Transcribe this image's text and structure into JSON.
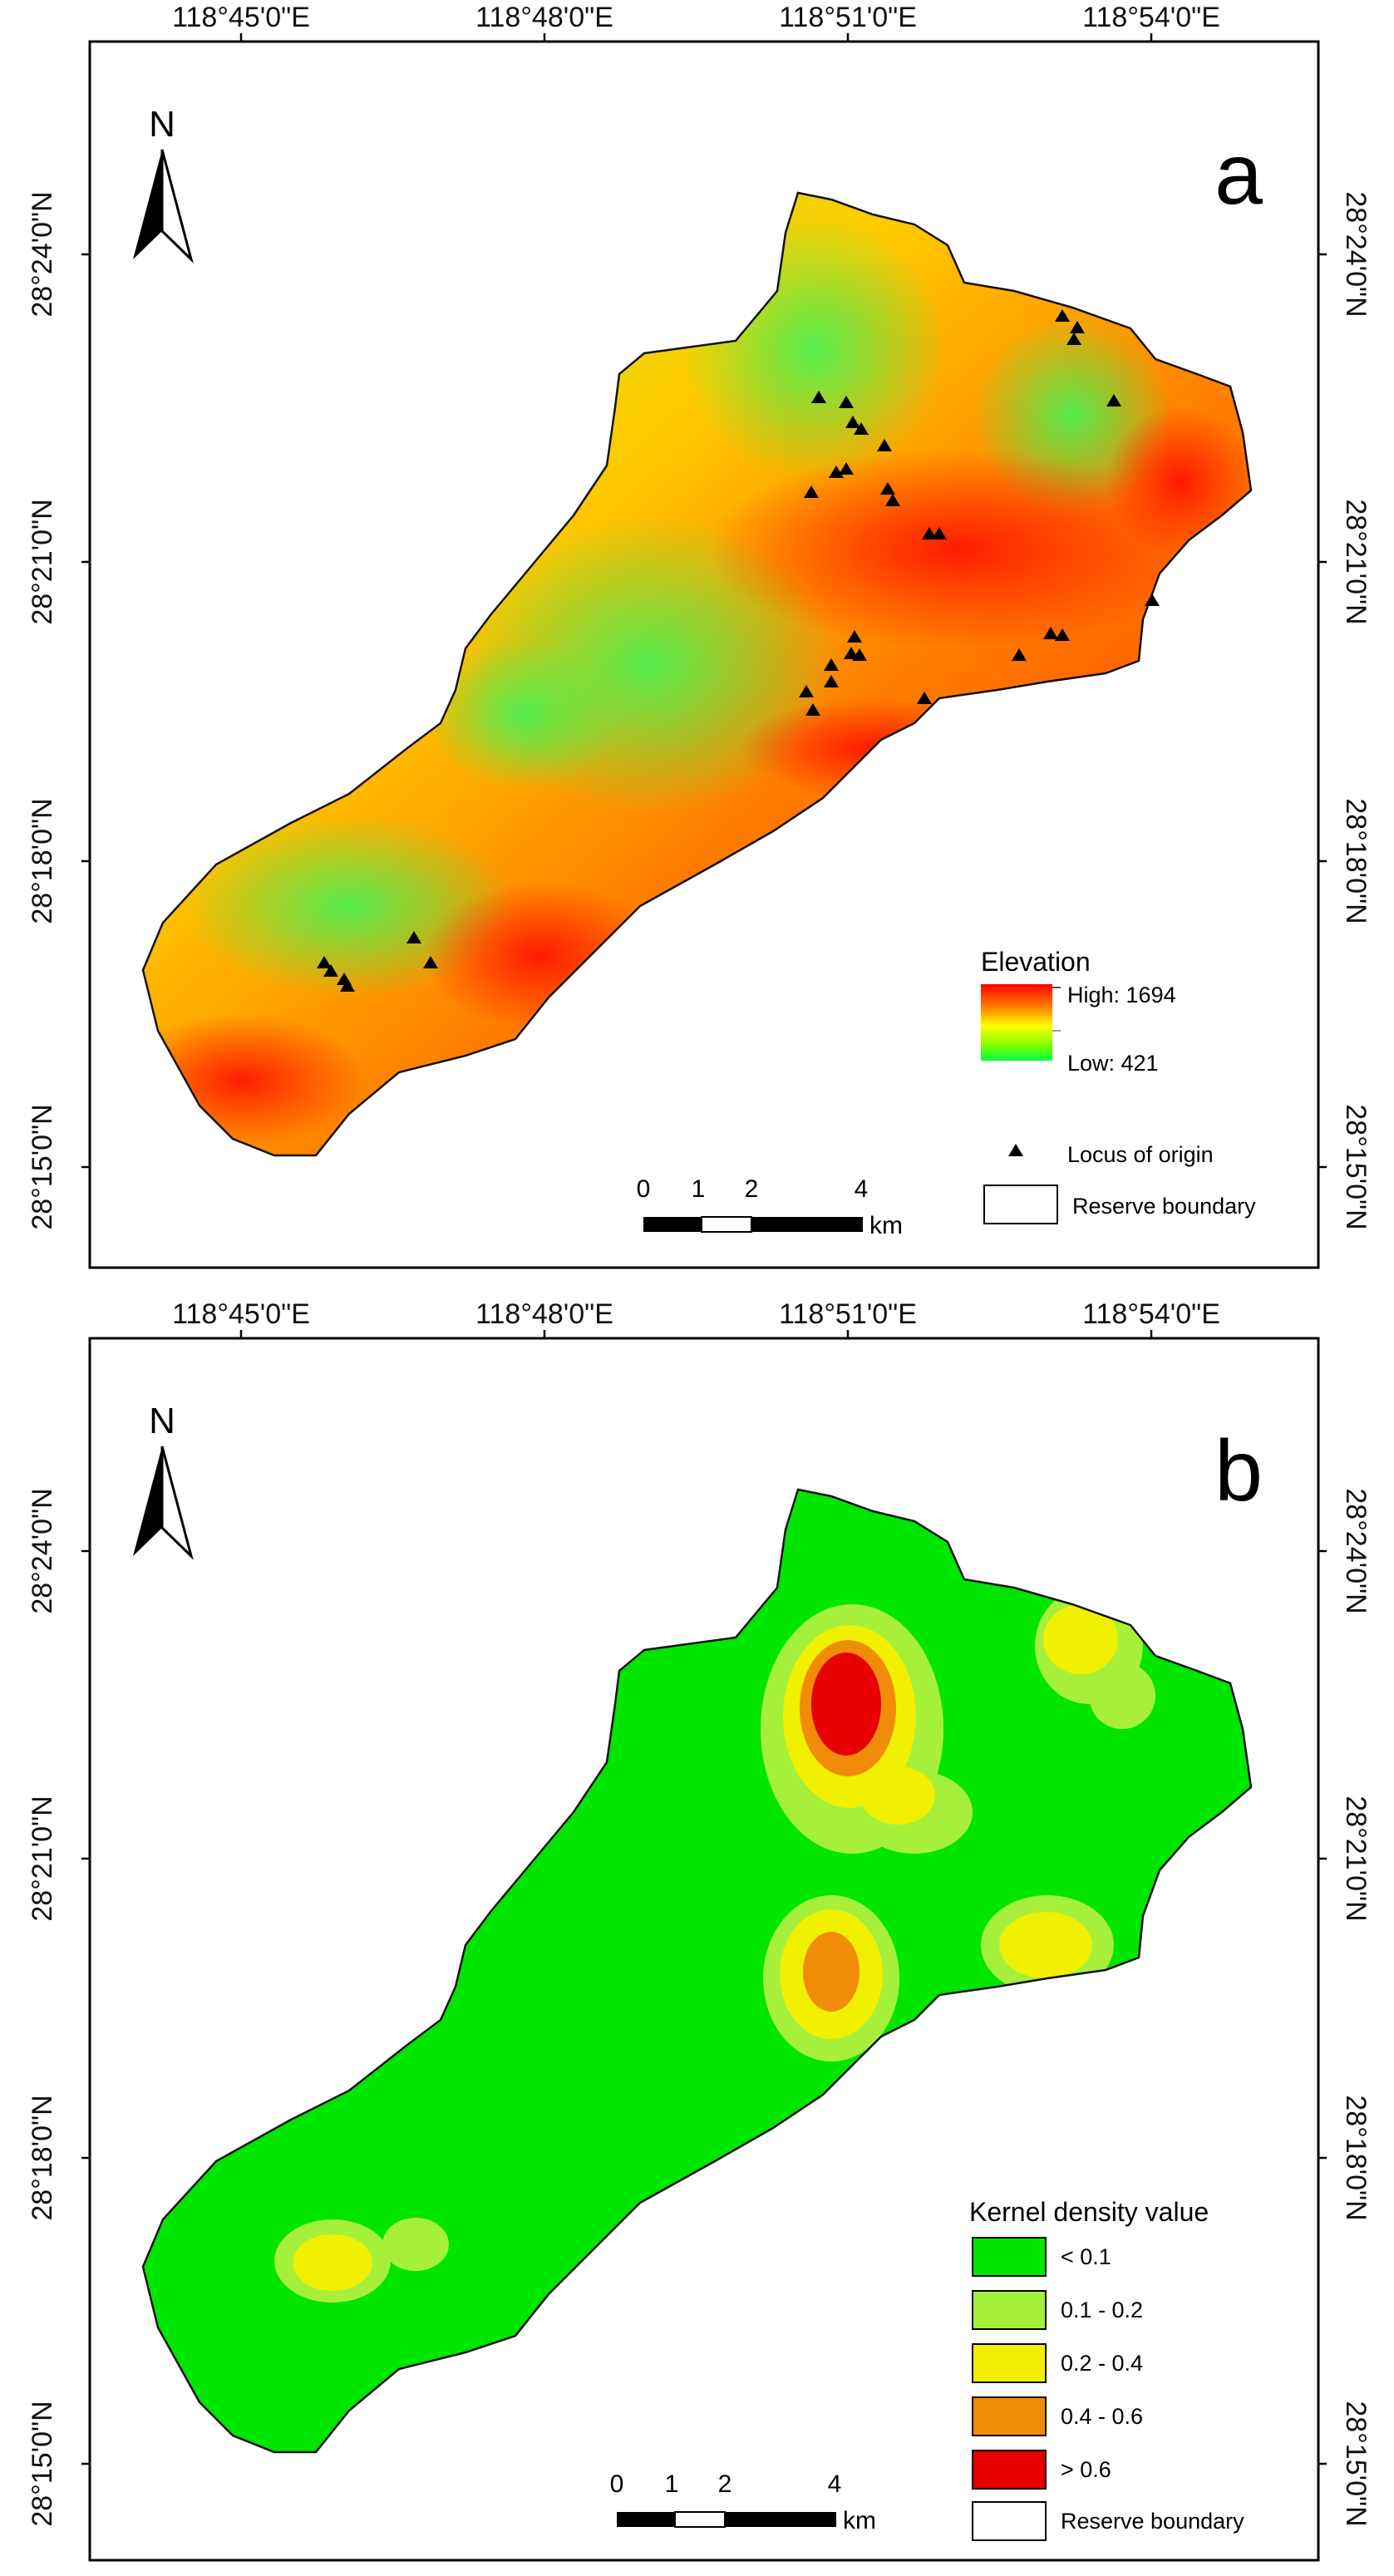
{
  "panels": [
    {
      "id": "a",
      "letter": "a",
      "north_label": "N",
      "lon_labels": [
        "118°45'0\"E",
        "118°48'0\"E",
        "118°51'0\"E",
        "118°54'0\"E"
      ],
      "lat_labels": [
        "28°24'0\"N",
        "28°21'0\"N",
        "28°18'0\"N",
        "28°15'0\"N"
      ],
      "legend": {
        "title": "Elevation",
        "high_label": "High: 1694",
        "low_label": "Low: 421",
        "ramp_colors": [
          "#ff0000",
          "#ff8000",
          "#ffff00",
          "#80ff00",
          "#00ff40"
        ],
        "locus_label": "Locus of origin",
        "boundary_label": "Reserve boundary"
      },
      "scalebar": {
        "ticks": [
          "0",
          "1",
          "2",
          "4"
        ],
        "unit": "km"
      }
    },
    {
      "id": "b",
      "letter": "b",
      "north_label": "N",
      "lon_labels": [
        "118°45'0\"E",
        "118°48'0\"E",
        "118°51'0\"E",
        "118°54'0\"E"
      ],
      "lat_labels": [
        "28°24'0\"N",
        "28°21'0\"N",
        "28°18'0\"N",
        "28°15'0\"N"
      ],
      "legend": {
        "title": "Kernel density value",
        "classes": [
          {
            "label": "< 0.1",
            "color": "#00e600"
          },
          {
            "label": "0.1 - 0.2",
            "color": "#a6f03c"
          },
          {
            "label": "0.2 - 0.4",
            "color": "#f0f000"
          },
          {
            "label": "0.4 - 0.6",
            "color": "#f08c0a"
          },
          {
            "label": "> 0.6",
            "color": "#e60000"
          }
        ],
        "boundary_label": "Reserve boundary"
      },
      "scalebar": {
        "ticks": [
          "0",
          "1",
          "2",
          "4"
        ],
        "unit": "km"
      }
    }
  ]
}
